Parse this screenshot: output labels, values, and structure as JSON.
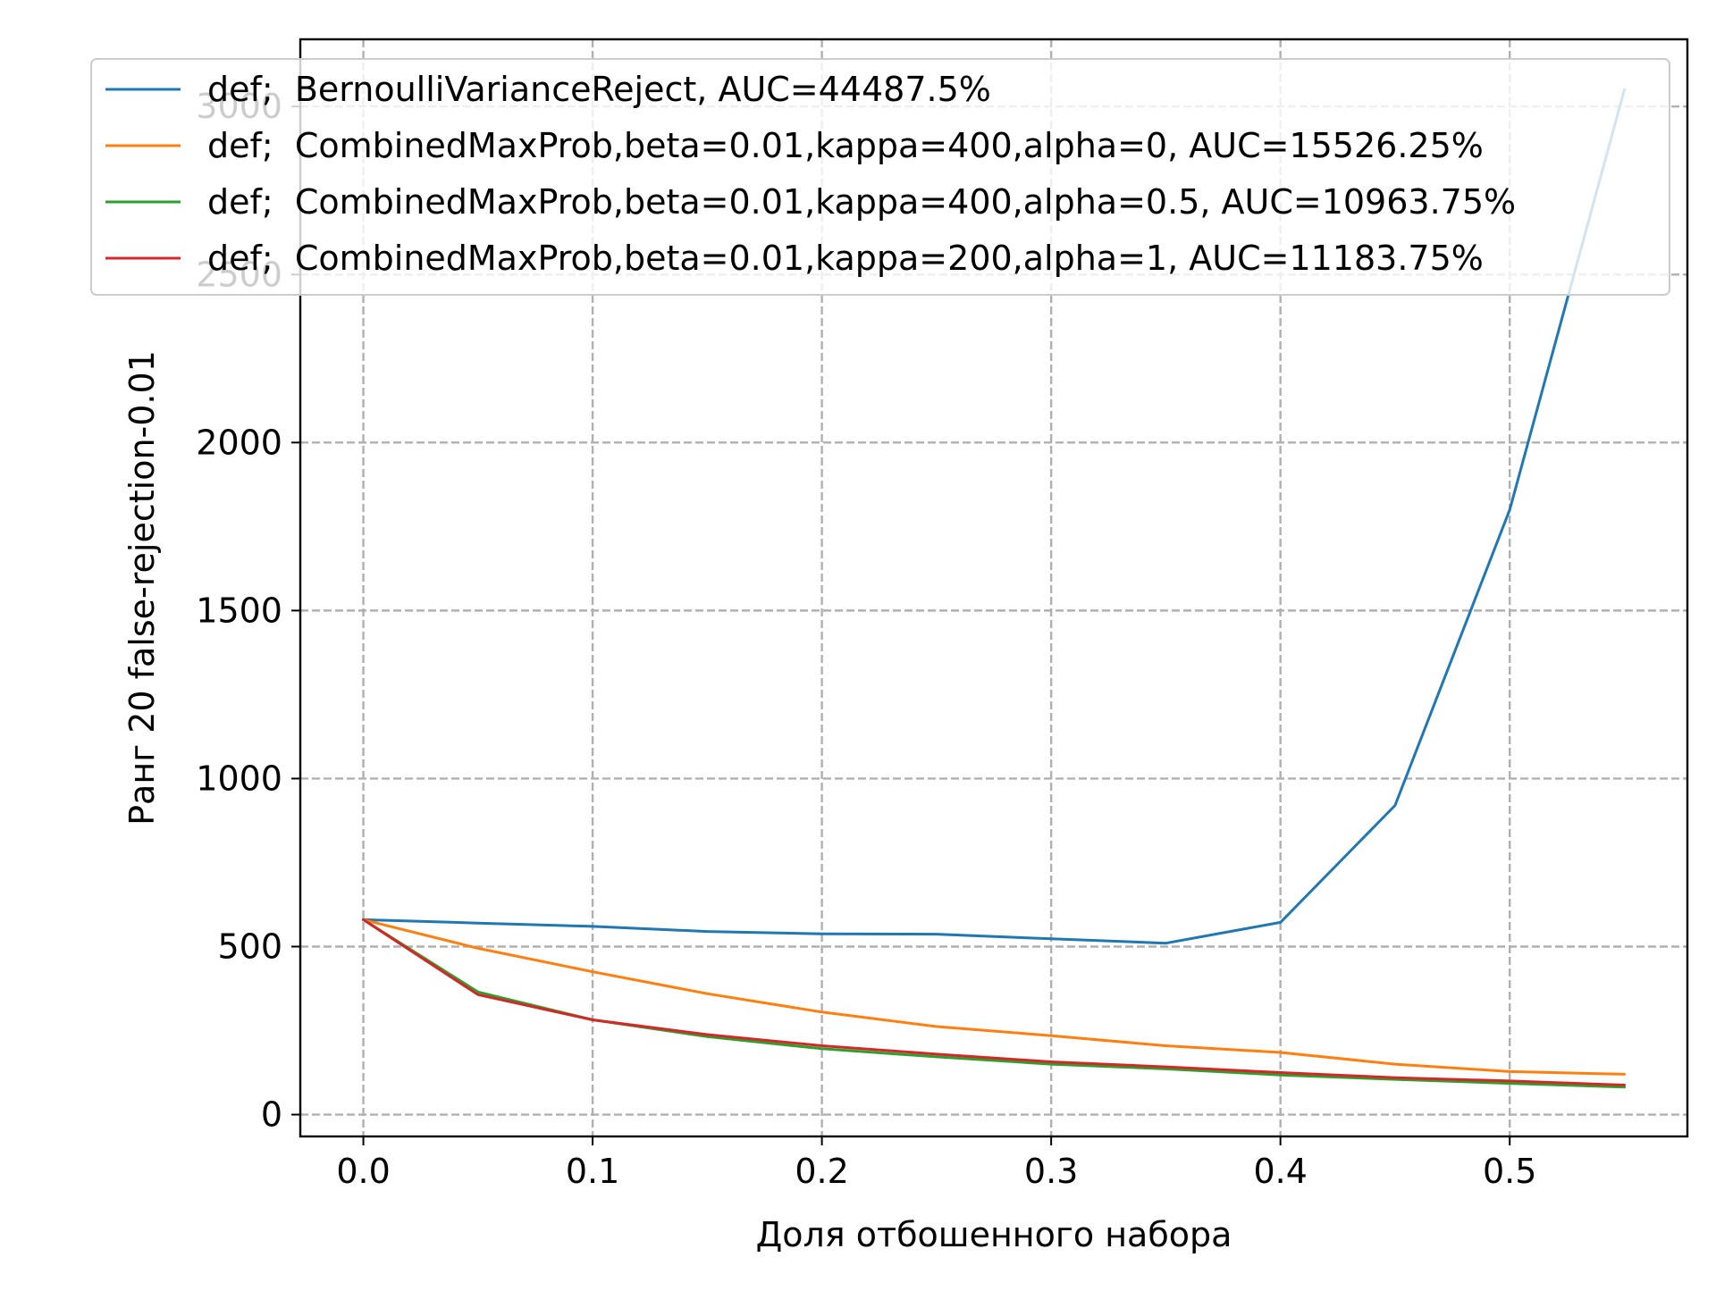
{
  "chart_data": {
    "type": "line",
    "title": "",
    "xlabel": "Доля отбошенного набора",
    "ylabel": "Ранг 20 false-rejection-0.01",
    "xlim": [
      -0.0275,
      0.5775
    ],
    "ylim": [
      -65,
      3200
    ],
    "x_ticks": [
      0.0,
      0.1,
      0.2,
      0.3,
      0.4,
      0.5
    ],
    "x_tick_labels": [
      "0.0",
      "0.1",
      "0.2",
      "0.3",
      "0.4",
      "0.5"
    ],
    "y_ticks": [
      0,
      500,
      1000,
      1500,
      2000,
      2500,
      3000
    ],
    "y_tick_labels": [
      "0",
      "500",
      "1000",
      "1500",
      "2000",
      "2500",
      "3000"
    ],
    "grid": true,
    "legend_position": "top",
    "x": [
      0.0,
      0.05,
      0.1,
      0.15,
      0.2,
      0.25,
      0.3,
      0.35,
      0.4,
      0.45,
      0.5,
      0.55
    ],
    "series": [
      {
        "name": "def;  BernoulliVarianceReject, AUC=44487.5%",
        "color": "#1f77b4",
        "values": [
          580,
          570,
          560,
          545,
          538,
          537,
          523,
          510,
          572,
          920,
          1800,
          3050
        ]
      },
      {
        "name": "def;  CombinedMaxProb,beta=0.01,kappa=400,alpha=0, AUC=15526.25%",
        "color": "#ff7f0e",
        "values": [
          580,
          495,
          425,
          360,
          305,
          262,
          235,
          205,
          185,
          150,
          128,
          120
        ]
      },
      {
        "name": "def;  CombinedMaxProb,beta=0.01,kappa=400,alpha=0.5, AUC=10963.75%",
        "color": "#2ca02c",
        "values": [
          580,
          365,
          282,
          232,
          196,
          172,
          150,
          136,
          118,
          105,
          93,
          82
        ]
      },
      {
        "name": "def;  CombinedMaxProb,beta=0.01,kappa=200,alpha=1, AUC=11183.75%",
        "color": "#d62728",
        "values": [
          580,
          357,
          282,
          238,
          205,
          180,
          157,
          142,
          125,
          110,
          100,
          88
        ]
      }
    ]
  }
}
